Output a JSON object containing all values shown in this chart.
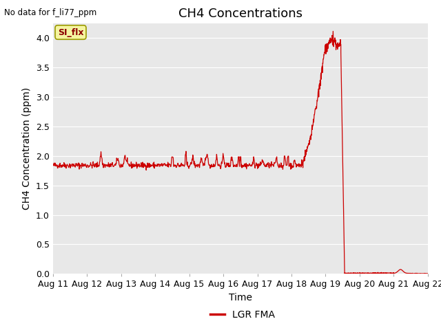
{
  "title": "CH4 Concentrations",
  "xlabel": "Time",
  "ylabel": "CH4 Concentration (ppm)",
  "top_left_note": "No data for f_li77_ppm",
  "legend_label": "LGR FMA",
  "legend_color": "#cc0000",
  "line_color": "#cc0000",
  "plot_bg_color": "#e8e8e8",
  "fig_bg_color": "#ffffff",
  "ylim": [
    0.0,
    4.25
  ],
  "yticks": [
    0.0,
    0.5,
    1.0,
    1.5,
    2.0,
    2.5,
    3.0,
    3.5,
    4.0
  ],
  "xtick_labels": [
    "Aug 11",
    "Aug 12",
    "Aug 13",
    "Aug 14",
    "Aug 15",
    "Aug 16",
    "Aug 17",
    "Aug 18",
    "Aug 19",
    "Aug 20",
    "Aug 21",
    "Aug 22"
  ],
  "annotation_box_text": "SI_flx",
  "annotation_box_color": "#f5f5a0",
  "annotation_box_edge": "#999900",
  "title_fontsize": 13,
  "axis_fontsize": 9,
  "label_fontsize": 10
}
